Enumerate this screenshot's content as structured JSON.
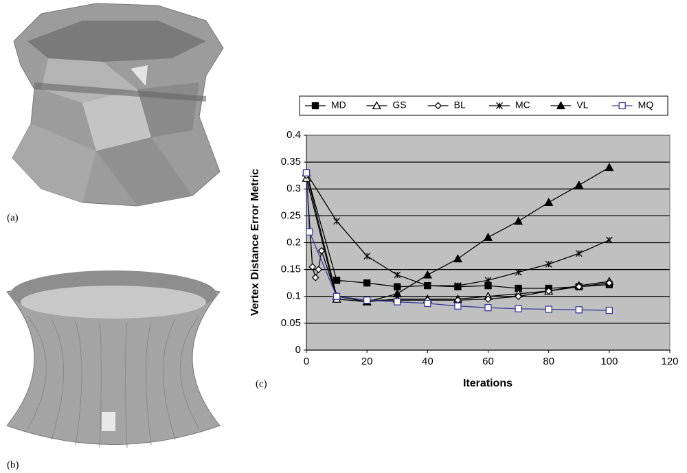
{
  "panel_labels": [
    "(a)",
    "(b)",
    "(c)"
  ],
  "chart_data": {
    "type": "line",
    "x_label": "Iterations",
    "y_label": "Vertex Distance Error Metric",
    "xlim": [
      0,
      120
    ],
    "xticks": [
      0,
      20,
      40,
      60,
      80,
      100,
      120
    ],
    "ylim": [
      0,
      0.4
    ],
    "yticks": [
      0,
      0.05,
      0.1,
      0.15,
      0.2,
      0.25,
      0.3,
      0.35,
      0.4
    ],
    "grid": true,
    "background": "#c0c0c0",
    "legend": "top",
    "series": [
      {
        "name": "MD",
        "color": "#000000",
        "marker": "square-filled",
        "x": [
          0,
          10,
          20,
          30,
          40,
          50,
          60,
          70,
          80,
          90,
          100
        ],
        "values": [
          0.33,
          0.13,
          0.125,
          0.118,
          0.12,
          0.118,
          0.12,
          0.115,
          0.115,
          0.118,
          0.122
        ]
      },
      {
        "name": "GS",
        "color": "#000000",
        "marker": "triangle-open",
        "x": [
          0,
          10,
          20,
          30,
          40,
          50,
          60,
          70,
          80,
          90,
          100
        ],
        "values": [
          0.32,
          0.095,
          0.09,
          0.095,
          0.095,
          0.095,
          0.1,
          0.105,
          0.11,
          0.12,
          0.128
        ]
      },
      {
        "name": "BL",
        "color": "#000000",
        "marker": "diamond-open",
        "x": [
          0,
          2,
          3,
          4,
          5,
          10,
          20,
          30,
          40,
          50,
          60,
          70,
          80,
          90,
          100
        ],
        "values": [
          0.325,
          0.155,
          0.135,
          0.15,
          0.185,
          0.1,
          0.093,
          0.093,
          0.093,
          0.093,
          0.095,
          0.1,
          0.11,
          0.118,
          0.125
        ]
      },
      {
        "name": "MC",
        "color": "#000000",
        "marker": "star",
        "x": [
          0,
          10,
          20,
          30,
          40,
          50,
          60,
          70,
          80,
          90,
          100
        ],
        "values": [
          0.33,
          0.24,
          0.175,
          0.14,
          0.12,
          0.12,
          0.13,
          0.145,
          0.16,
          0.18,
          0.205
        ]
      },
      {
        "name": "VL",
        "color": "#000000",
        "marker": "triangle-filled",
        "x": [
          0,
          10,
          20,
          30,
          40,
          50,
          60,
          70,
          80,
          90,
          100
        ],
        "values": [
          0.33,
          0.1,
          0.09,
          0.105,
          0.14,
          0.17,
          0.21,
          0.24,
          0.275,
          0.307,
          0.34
        ]
      },
      {
        "name": "MQ",
        "color": "#3a3aa0",
        "marker": "square-open",
        "x": [
          0,
          1,
          10,
          20,
          30,
          40,
          50,
          60,
          70,
          80,
          90,
          100
        ],
        "values": [
          0.33,
          0.22,
          0.1,
          0.093,
          0.09,
          0.087,
          0.082,
          0.079,
          0.077,
          0.076,
          0.075,
          0.074
        ]
      }
    ]
  }
}
